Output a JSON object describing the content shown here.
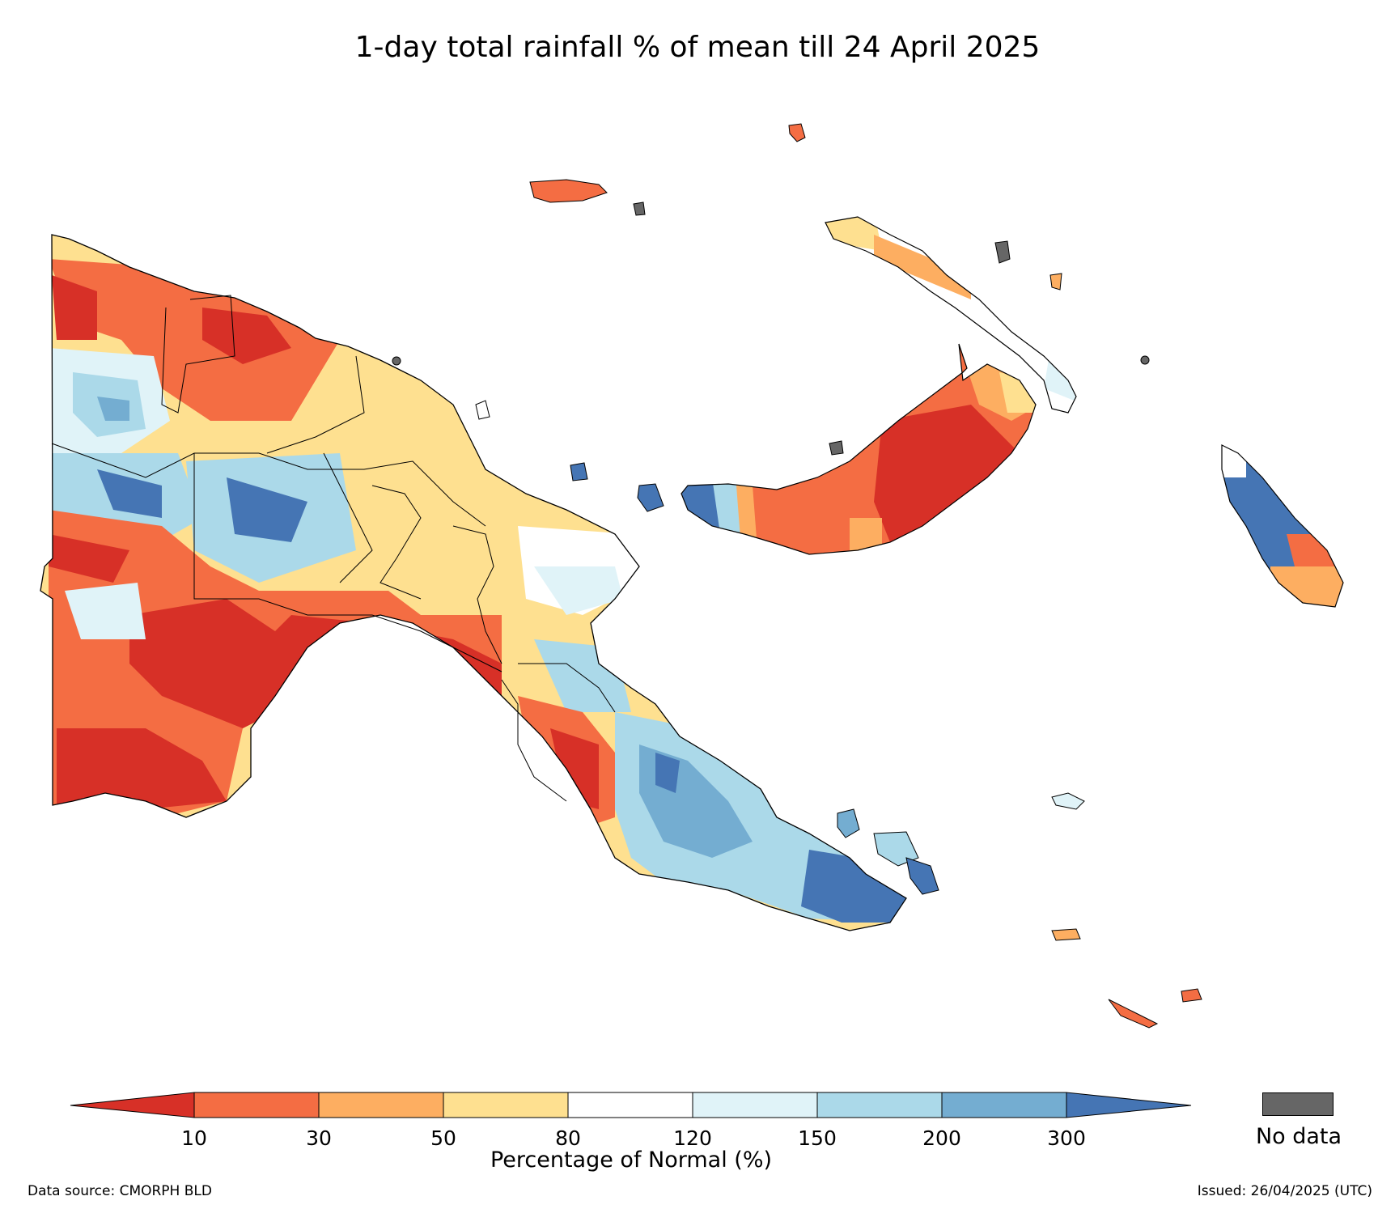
{
  "title": "1-day total rainfall % of mean till 24 April 2025",
  "colorbar": {
    "ticks": [
      "10",
      "30",
      "50",
      "80",
      "120",
      "150",
      "200",
      "300"
    ],
    "colors": [
      "#d73027",
      "#f46d43",
      "#fdae61",
      "#fee090",
      "#ffffff",
      "#e0f3f8",
      "#abd9e9",
      "#74add1",
      "#4575b4"
    ],
    "label": "Percentage of Normal (%)",
    "no_data_label": "No data",
    "no_data_color": "#666666"
  },
  "footer": {
    "source": "Data source: CMORPH BLD",
    "issued": "Issued: 26/04/2025 (UTC)"
  }
}
